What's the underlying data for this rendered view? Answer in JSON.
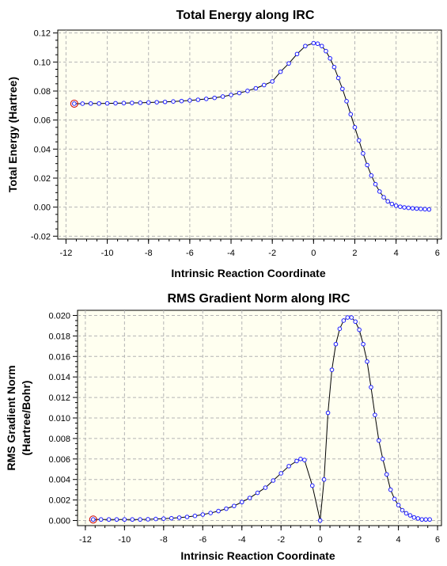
{
  "chart_data": [
    {
      "type": "line",
      "title": "Total Energy along IRC",
      "xlabel": "Intrinsic Reaction Coordinate",
      "ylabel": "Total Energy (Hartree)",
      "xlim": [
        -12.4,
        6.2
      ],
      "ylim": [
        -0.022,
        0.122
      ],
      "xticks": [
        -12,
        -10,
        -8,
        -6,
        -4,
        -2,
        0,
        2,
        4,
        6
      ],
      "yticks": [
        -0.02,
        0.0,
        0.02,
        0.04,
        0.06,
        0.08,
        0.1,
        0.12
      ],
      "xtick_labels": [
        "-12",
        "-10",
        "-8",
        "-6",
        "-4",
        "-2",
        "0",
        "2",
        "4",
        "6"
      ],
      "ytick_labels": [
        "-0.02",
        "0.00",
        "0.02",
        "0.04",
        "0.06",
        "0.08",
        "0.10",
        "0.12"
      ],
      "grid": true,
      "highlighted_point": [
        -11.6,
        0.0713
      ],
      "x": [
        -11.6,
        -11.2,
        -10.8,
        -10.4,
        -10.0,
        -9.6,
        -9.2,
        -8.8,
        -8.4,
        -8.0,
        -7.6,
        -7.2,
        -6.8,
        -6.4,
        -6.0,
        -5.6,
        -5.2,
        -4.8,
        -4.4,
        -4.0,
        -3.6,
        -3.2,
        -2.8,
        -2.4,
        -2.0,
        -1.6,
        -1.2,
        -0.8,
        -0.4,
        0.0,
        0.2,
        0.4,
        0.6,
        0.8,
        1.0,
        1.2,
        1.4,
        1.6,
        1.8,
        2.0,
        2.2,
        2.4,
        2.6,
        2.8,
        3.0,
        3.2,
        3.4,
        3.6,
        3.8,
        4.0,
        4.2,
        4.4,
        4.6,
        4.8,
        5.0,
        5.2,
        5.4,
        5.6
      ],
      "y": [
        0.0713,
        0.0713,
        0.0714,
        0.0714,
        0.0715,
        0.0716,
        0.0717,
        0.0718,
        0.0719,
        0.0721,
        0.0723,
        0.0725,
        0.0728,
        0.0731,
        0.0735,
        0.074,
        0.0746,
        0.0753,
        0.0762,
        0.0773,
        0.0786,
        0.0801,
        0.0819,
        0.0841,
        0.0866,
        0.0933,
        0.099,
        0.1055,
        0.111,
        0.113,
        0.1126,
        0.111,
        0.1075,
        0.1025,
        0.0965,
        0.089,
        0.0815,
        0.073,
        0.064,
        0.055,
        0.046,
        0.037,
        0.029,
        0.0218,
        0.0158,
        0.0108,
        0.0068,
        0.004,
        0.0022,
        0.001,
        0.0003,
        -0.0002,
        -0.0005,
        -0.0008,
        -0.001,
        -0.0012,
        -0.0014,
        -0.0016
      ]
    },
    {
      "type": "line",
      "title": "RMS Gradient Norm along IRC",
      "xlabel": "Intrinsic Reaction Coordinate",
      "ylabel": [
        "RMS Gradient Norm",
        "(Hartree/Bohr)"
      ],
      "xlim": [
        -12.4,
        6.2
      ],
      "ylim": [
        -0.0005,
        0.0205
      ],
      "xticks": [
        -12,
        -10,
        -8,
        -6,
        -4,
        -2,
        0,
        2,
        4,
        6
      ],
      "yticks": [
        0.0,
        0.002,
        0.004,
        0.006,
        0.008,
        0.01,
        0.012,
        0.014,
        0.016,
        0.018,
        0.02
      ],
      "xtick_labels": [
        "-12",
        "-10",
        "-8",
        "-6",
        "-4",
        "-2",
        "0",
        "2",
        "4",
        "6"
      ],
      "ytick_labels": [
        "0.000",
        "0.002",
        "0.004",
        "0.006",
        "0.008",
        "0.010",
        "0.012",
        "0.014",
        "0.016",
        "0.018",
        "0.020"
      ],
      "grid": true,
      "highlighted_point": [
        -11.6,
        0.0001
      ],
      "x": [
        -11.6,
        -11.2,
        -10.8,
        -10.4,
        -10.0,
        -9.6,
        -9.2,
        -8.8,
        -8.4,
        -8.0,
        -7.6,
        -7.2,
        -6.8,
        -6.4,
        -6.0,
        -5.6,
        -5.2,
        -4.8,
        -4.4,
        -4.0,
        -3.6,
        -3.2,
        -2.8,
        -2.4,
        -2.0,
        -1.6,
        -1.2,
        -1.0,
        -0.8,
        -0.4,
        0.0,
        0.2,
        0.4,
        0.6,
        0.8,
        1.0,
        1.2,
        1.4,
        1.6,
        1.8,
        2.0,
        2.2,
        2.4,
        2.6,
        2.8,
        3.0,
        3.2,
        3.4,
        3.6,
        3.8,
        4.0,
        4.2,
        4.4,
        4.6,
        4.8,
        5.0,
        5.2,
        5.4,
        5.6
      ],
      "y": [
        0.0001,
        0.0001,
        0.0001,
        0.0001,
        0.0001,
        0.0001,
        0.0001,
        0.00012,
        0.00015,
        0.00018,
        0.00022,
        0.00028,
        0.00035,
        0.00045,
        0.00058,
        0.00073,
        0.00092,
        0.00115,
        0.00142,
        0.0018,
        0.0022,
        0.0027,
        0.0032,
        0.0039,
        0.0046,
        0.0053,
        0.0058,
        0.006,
        0.0059,
        0.0034,
        0.0,
        0.004,
        0.0105,
        0.0147,
        0.0172,
        0.0187,
        0.0195,
        0.0198,
        0.0198,
        0.0194,
        0.0186,
        0.0172,
        0.0155,
        0.013,
        0.0103,
        0.0078,
        0.006,
        0.0045,
        0.003,
        0.0021,
        0.0015,
        0.001,
        0.0007,
        0.0005,
        0.0003,
        0.0002,
        0.0001,
        0.0001,
        0.0001
      ]
    }
  ]
}
